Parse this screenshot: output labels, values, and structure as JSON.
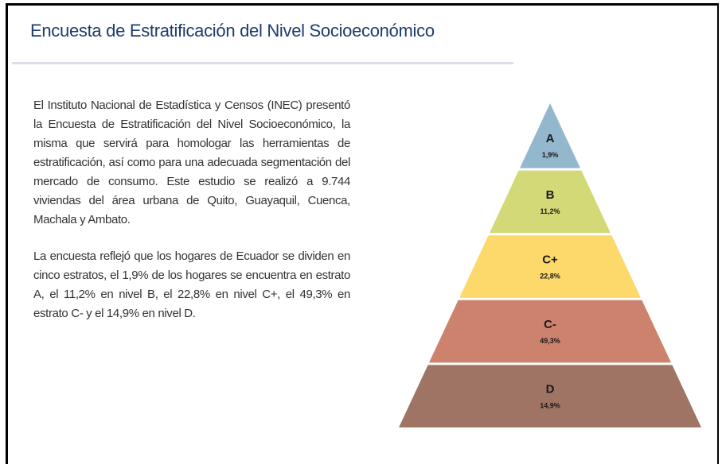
{
  "title": "Encuesta de Estratificación del Nivel Socioeconómico",
  "paragraphs": [
    "El Instituto Nacional de Estadística y Censos (INEC) presentó la Encuesta de Estratificación del Nivel Socioeconómico, la misma que servirá para homologar las herramientas de estratificación, así como para una adecuada segmentación del mercado de consumo. Este estudio se realizó a 9.744 viviendas del área urbana de Quito, Guayaquil, Cuenca, Machala y Ambato.",
    "La encuesta reflejó que los hogares de Ecuador se dividen en cinco estratos, el 1,9% de los hogares se encuentra en estrato A, el 11,2% en nivel B, el 22,8% en nivel C+, el 49,3% en estrato C- y el 14,9% en nivel D."
  ],
  "pyramid": [
    {
      "label": "A",
      "value": "1,9%",
      "color": "#93b7cd"
    },
    {
      "label": "B",
      "value": "11,2%",
      "color": "#d3d977"
    },
    {
      "label": "C+",
      "value": "22,8%",
      "color": "#fdd96c"
    },
    {
      "label": "C-",
      "value": "49,3%",
      "color": "#cd826d"
    },
    {
      "label": "D",
      "value": "14,9%",
      "color": "#9f7465"
    }
  ]
}
